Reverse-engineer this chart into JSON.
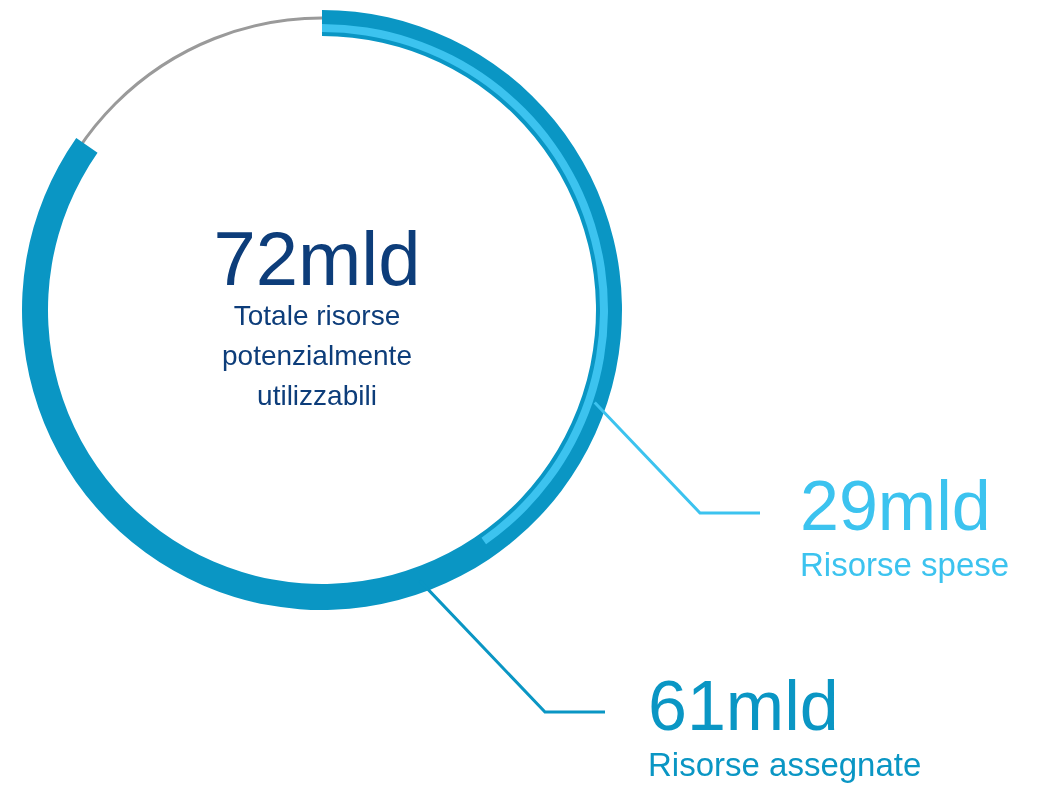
{
  "chart_data": {
    "type": "other",
    "categories": [
      "Totale risorse potenzialmente utilizzabili",
      "Risorse assegnate",
      "Risorse spese"
    ],
    "values": [
      72,
      61,
      29
    ],
    "value_labels": [
      "72mld",
      "61mld",
      "29mld"
    ],
    "colors": [
      "#9a9a9a",
      "#0a96c4",
      "#3cc3ef"
    ]
  }
}
